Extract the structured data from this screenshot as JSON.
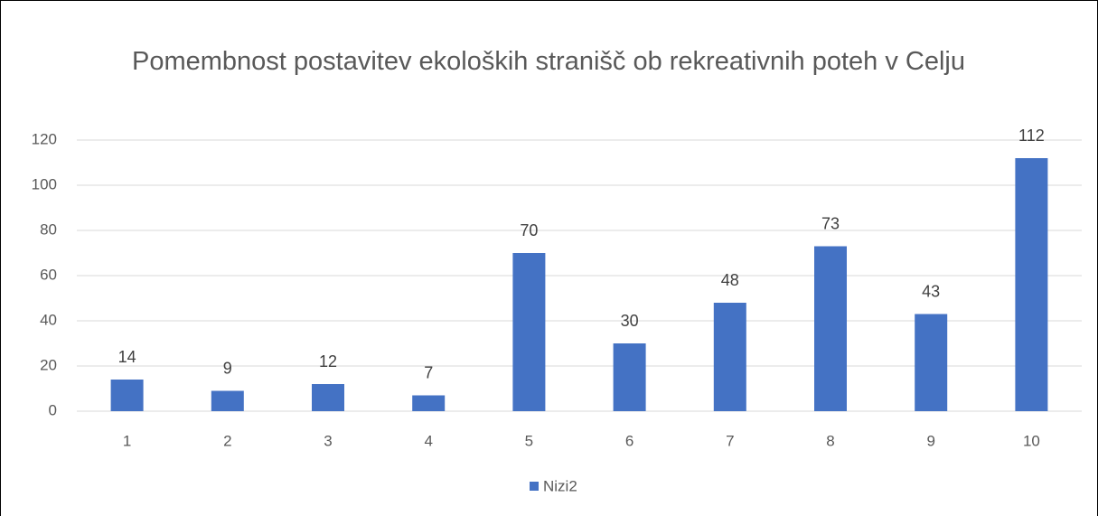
{
  "chart_data": {
    "type": "bar",
    "title": "Pomembnost postavitev ekoloških stranišč ob rekreativnih poteh v Celju",
    "categories": [
      "1",
      "2",
      "3",
      "4",
      "5",
      "6",
      "7",
      "8",
      "9",
      "10"
    ],
    "series": [
      {
        "name": "Nizi2",
        "color": "#4472c4",
        "values": [
          14,
          9,
          12,
          7,
          70,
          30,
          48,
          73,
          43,
          112
        ]
      }
    ],
    "ylim": [
      0,
      120
    ],
    "yticks": [
      0,
      20,
      40,
      60,
      80,
      100,
      120
    ],
    "grid": true,
    "legend": "bottom"
  }
}
